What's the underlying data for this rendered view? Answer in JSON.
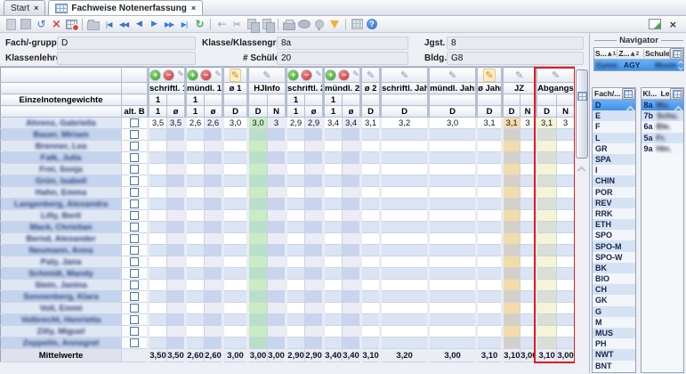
{
  "tabs": {
    "start": "Start",
    "main": "Fachweise Notenerfassung"
  },
  "toolbar": {
    "icons": [
      "new",
      "save",
      "undo",
      "delete",
      "table-edit",
      "sep",
      "folder",
      "nav-first",
      "nav-prev-fast",
      "nav-prev",
      "nav-next",
      "nav-next-fast",
      "nav-last",
      "refresh",
      "sep",
      "arrow-left",
      "cut",
      "copy",
      "paste",
      "sep",
      "print",
      "preview",
      "lamp",
      "filter",
      "sep",
      "grid",
      "help"
    ]
  },
  "form": {
    "fields": [
      {
        "id": "fach",
        "label": "Fach/-gruppe",
        "value": "D"
      },
      {
        "id": "klasse",
        "label": "Klasse/Klassengruppe",
        "value": "8a"
      },
      {
        "id": "jgst",
        "label": "Jgst.",
        "value": "8"
      },
      {
        "id": "klassenlehrer",
        "label": "Klassenlehrer",
        "value": ""
      },
      {
        "id": "schueler",
        "label": "# Schüler",
        "value": "20"
      },
      {
        "id": "bldg",
        "label": "Bldg.",
        "value": "G8"
      }
    ]
  },
  "grid": {
    "weights_label": "Einzelnotengewichte",
    "altb_label": "alt. B",
    "groups": [
      {
        "label": "schriftl. 1",
        "tools": [
          "add",
          "remove",
          "edit-sm"
        ],
        "weight": "1",
        "subs": [
          "1",
          "ø"
        ],
        "tints": [
          null,
          "avg"
        ]
      },
      {
        "label": "mündl. 1",
        "tools": [
          "add",
          "remove",
          "edit-sm"
        ],
        "weight": "1",
        "subs": [
          "1",
          "ø"
        ],
        "tints": [
          null,
          "avg"
        ]
      },
      {
        "label": "ø 1",
        "tools": [
          "edit-y"
        ],
        "weight": "",
        "subs": [
          "D"
        ],
        "tints": [
          null
        ]
      },
      {
        "label": "HJInfo",
        "tools": [
          "edit"
        ],
        "weight": "",
        "subs": [
          "D",
          "N"
        ],
        "tints": [
          "green",
          "avg"
        ]
      },
      {
        "label": "schriftl. 2",
        "tools": [
          "add",
          "remove",
          "edit-sm"
        ],
        "weight": "1",
        "subs": [
          "1",
          "ø"
        ],
        "tints": [
          null,
          "avg"
        ]
      },
      {
        "label": "mündl. 2",
        "tools": [
          "add",
          "remove",
          "edit-sm"
        ],
        "weight": "1",
        "subs": [
          "1",
          "ø"
        ],
        "tints": [
          null,
          "avg"
        ]
      },
      {
        "label": "ø 2",
        "tools": [
          "edit"
        ],
        "weight": "",
        "subs": [
          "D"
        ],
        "tints": [
          null
        ]
      },
      {
        "label": "schriftl. Jahr",
        "tools": [
          "edit"
        ],
        "weight": "",
        "subs": [
          "D"
        ],
        "tints": [
          null
        ]
      },
      {
        "label": "mündl. Jahr",
        "tools": [
          "edit"
        ],
        "weight": "",
        "subs": [
          "D"
        ],
        "tints": [
          null
        ]
      },
      {
        "label": "ø Jahr",
        "tools": [
          "edit-y"
        ],
        "weight": "",
        "subs": [
          "D"
        ],
        "tints": [
          null
        ]
      },
      {
        "label": "JZ",
        "tools": [
          "edit"
        ],
        "weight": "",
        "subs": [
          "D",
          "N"
        ],
        "tints": [
          "tan",
          null
        ]
      },
      {
        "label": "AbgangsZ",
        "tools": [
          "edit"
        ],
        "weight": "",
        "subs": [
          "D",
          "N"
        ],
        "tints": [
          "yellow",
          null
        ],
        "highlight": true
      }
    ],
    "names_redacted": true,
    "students": [
      {
        "name": "Ahrens, Gabriella",
        "values": [
          "3,5",
          "3,5",
          "2,6",
          "2,6",
          "3,0",
          "3,0",
          "3",
          "2,9",
          "2,9",
          "3,4",
          "3,4",
          "3,1",
          "3,2",
          "3,0",
          "3,1",
          "3,1",
          "3",
          "3,1",
          "3"
        ]
      },
      {
        "name": "Bauer, Miriam",
        "values": []
      },
      {
        "name": "Brenner, Lea",
        "values": []
      },
      {
        "name": "Falk, Julia",
        "values": []
      },
      {
        "name": "Frei, Sonja",
        "values": []
      },
      {
        "name": "Grün, Isabell",
        "values": []
      },
      {
        "name": "Hahn, Emma",
        "values": []
      },
      {
        "name": "Langenberg, Alexandra",
        "values": []
      },
      {
        "name": "Lilly, Berit",
        "values": []
      },
      {
        "name": "Mack, Christian",
        "values": []
      },
      {
        "name": "Bernd, Alexander",
        "values": []
      },
      {
        "name": "Neumann, Anna",
        "values": []
      },
      {
        "name": "Paly, Jana",
        "values": []
      },
      {
        "name": "Schmidt, Mandy",
        "values": []
      },
      {
        "name": "Stein, Janina",
        "values": []
      },
      {
        "name": "Sonnenberg, Klara",
        "values": []
      },
      {
        "name": "Voll, Emmi",
        "values": []
      },
      {
        "name": "Volbrecht, Henrietta",
        "values": []
      },
      {
        "name": "Zilly, Miguel",
        "values": []
      },
      {
        "name": "Zeppelin, Annegret",
        "values": []
      }
    ],
    "summary": {
      "label": "Mittelwerte",
      "values": [
        "3,50",
        "3,50",
        "2,60",
        "2,60",
        "3,00",
        "3,00",
        "3,00",
        "2,90",
        "2,90",
        "3,40",
        "3,40",
        "3,10",
        "3,20",
        "3,00",
        "3,10",
        "3,10",
        "3,00",
        "3,10",
        "3,00"
      ]
    }
  },
  "navigator": {
    "title": "Navigator",
    "school_list": {
      "columns": [
        {
          "label": "S...",
          "sort": "1"
        },
        {
          "label": "Z...",
          "sort": "2"
        },
        {
          "label": "Schule",
          "sort": ""
        }
      ],
      "row": {
        "schulart": "Gymn",
        "zweig": "AGY",
        "schule": "Muster"
      },
      "redacted": [
        "schulart",
        "schule"
      ]
    },
    "subject_list": {
      "header": "Fach/...",
      "selected": "D",
      "items": [
        "D",
        "E",
        "F",
        "L",
        "GR",
        "SPA",
        "I",
        "CHIN",
        "POR",
        "REV",
        "RRK",
        "ETH",
        "SPO",
        "SPO-M",
        "SPO-W",
        "BK",
        "BIO",
        "CH",
        "GK",
        "G",
        "M",
        "MUS",
        "PH",
        "NWT",
        "BNT"
      ]
    },
    "class_list": {
      "headers": [
        "Kl...",
        "Le..."
      ],
      "selected": "8a",
      "rows": [
        {
          "klasse": "8a",
          "lehrer": "Mu."
        },
        {
          "klasse": "7b",
          "lehrer": "Schu."
        },
        {
          "klasse": "6a",
          "lehrer": "Ble."
        },
        {
          "klasse": "5a",
          "lehrer": "Fr."
        },
        {
          "klasse": "9a",
          "lehrer": "Hin."
        }
      ]
    }
  },
  "colors": {
    "highlight_box": "#e01b1b",
    "selection_blue": "#4f9ef0",
    "cell_green": "#c9edc2",
    "cell_tan": "#f2dcaa",
    "cell_yellow": "#f6f4d6",
    "cell_avg": "#ebecf6"
  }
}
